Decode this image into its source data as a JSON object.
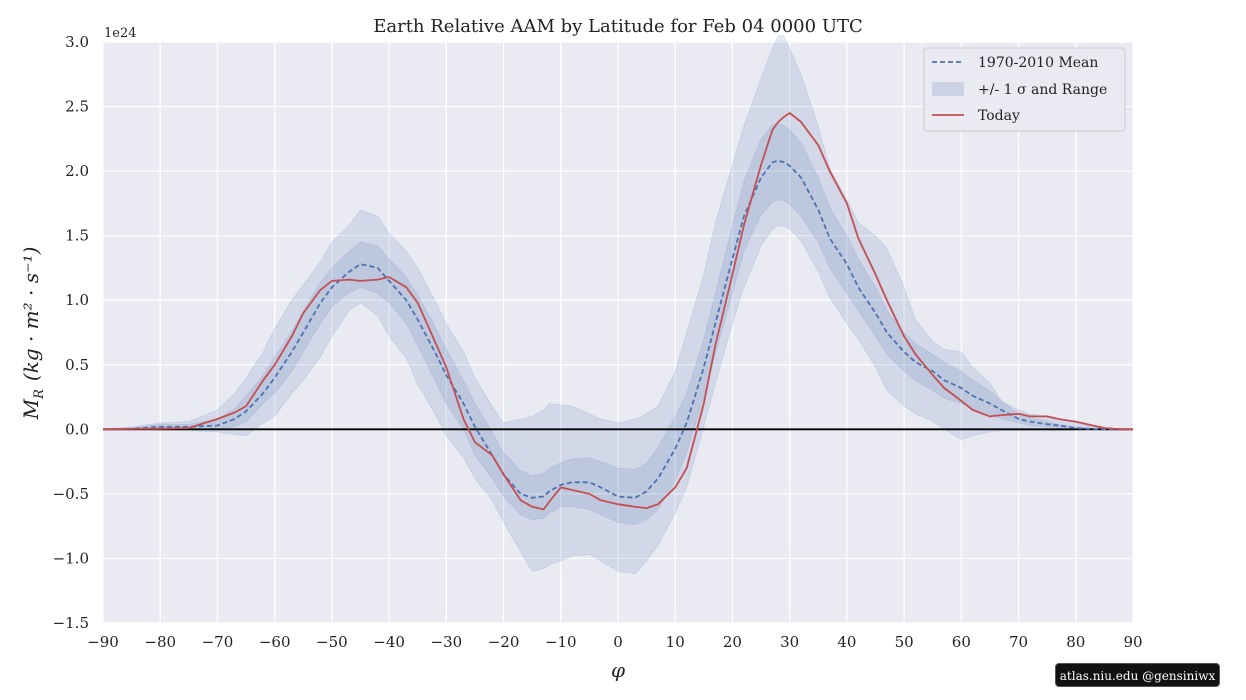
{
  "chart_data": {
    "type": "line",
    "title": "Earth Relative AAM by Latitude for Feb 04 0000 UTC",
    "xlabel": "φ",
    "ylabel_main": "M",
    "ylabel_sub": "R",
    "ylabel_units": "(kg · m² · s⁻¹)",
    "y_offset_label": "1e24",
    "xlim": [
      -90,
      90
    ],
    "ylim": [
      -1.5,
      3.0
    ],
    "x_ticks": [
      -90,
      -80,
      -70,
      -60,
      -50,
      -40,
      -30,
      -20,
      -10,
      0,
      10,
      20,
      30,
      40,
      50,
      60,
      70,
      80,
      90
    ],
    "x_tick_labels": [
      "−90",
      "−80",
      "−70",
      "−60",
      "−50",
      "−40",
      "−30",
      "−20",
      "−10",
      "0",
      "10",
      "20",
      "30",
      "40",
      "50",
      "60",
      "70",
      "80",
      "90"
    ],
    "y_ticks": [
      -1.5,
      -1.0,
      -0.5,
      0.0,
      0.5,
      1.0,
      1.5,
      2.0,
      2.5,
      3.0
    ],
    "y_tick_labels": [
      "−1.5",
      "−1.0",
      "−0.5",
      "0.0",
      "0.5",
      "1.0",
      "1.5",
      "2.0",
      "2.5",
      "3.0"
    ],
    "grid": true,
    "legend_position": "top-right",
    "legend": [
      "1970-2010 Mean",
      "+/- 1 σ and Range",
      "Today"
    ],
    "colors": {
      "background": "#eaeaf2",
      "grid": "#ffffff",
      "mean": "#4c72b0",
      "band": "#4c72b0",
      "today": "#c44e52",
      "zero_line": "#000000"
    },
    "x": [
      -90,
      -85,
      -80,
      -75,
      -70,
      -67,
      -65,
      -62,
      -60,
      -57,
      -55,
      -52,
      -50,
      -47,
      -45,
      -42,
      -40,
      -37,
      -35,
      -32,
      -30,
      -27,
      -25,
      -22,
      -20,
      -17,
      -15,
      -13,
      -12,
      -10,
      -8,
      -5,
      -3,
      0,
      3,
      5,
      7,
      10,
      12,
      15,
      17,
      20,
      22,
      25,
      27,
      28,
      29,
      30,
      32,
      35,
      37,
      40,
      42,
      45,
      47,
      50,
      52,
      55,
      57,
      60,
      62,
      65,
      67,
      70,
      72,
      75,
      77,
      80,
      82,
      85,
      88,
      90
    ],
    "series": [
      {
        "name": "1970-2010 Mean",
        "style": "dashed",
        "values": [
          0,
          0.005,
          0.02,
          0.02,
          0.03,
          0.08,
          0.14,
          0.28,
          0.4,
          0.6,
          0.75,
          0.98,
          1.1,
          1.22,
          1.28,
          1.25,
          1.15,
          1.0,
          0.85,
          0.6,
          0.42,
          0.2,
          0.02,
          -0.2,
          -0.35,
          -0.5,
          -0.53,
          -0.52,
          -0.48,
          -0.43,
          -0.41,
          -0.41,
          -0.45,
          -0.52,
          -0.53,
          -0.48,
          -0.38,
          -0.15,
          0.05,
          0.48,
          0.82,
          1.32,
          1.65,
          1.95,
          2.07,
          2.08,
          2.07,
          2.04,
          1.95,
          1.7,
          1.48,
          1.28,
          1.1,
          0.9,
          0.75,
          0.6,
          0.52,
          0.45,
          0.38,
          0.32,
          0.26,
          0.2,
          0.15,
          0.08,
          0.06,
          0.04,
          0.03,
          0.01,
          0.005,
          0,
          0,
          0
        ]
      },
      {
        "name": "Today",
        "style": "solid",
        "values": [
          0,
          0.003,
          0.005,
          0.01,
          0.08,
          0.13,
          0.18,
          0.38,
          0.5,
          0.72,
          0.9,
          1.08,
          1.15,
          1.16,
          1.15,
          1.16,
          1.18,
          1.1,
          0.98,
          0.68,
          0.48,
          0.08,
          -0.1,
          -0.2,
          -0.35,
          -0.55,
          -0.6,
          -0.62,
          -0.56,
          -0.45,
          -0.47,
          -0.5,
          -0.55,
          -0.58,
          -0.6,
          -0.61,
          -0.58,
          -0.45,
          -0.3,
          0.2,
          0.65,
          1.2,
          1.58,
          2.05,
          2.32,
          2.38,
          2.42,
          2.45,
          2.38,
          2.2,
          2.0,
          1.75,
          1.48,
          1.2,
          1.0,
          0.72,
          0.58,
          0.42,
          0.32,
          0.22,
          0.15,
          0.1,
          0.11,
          0.12,
          0.1,
          0.1,
          0.08,
          0.06,
          0.04,
          0.01,
          0,
          0
        ]
      }
    ],
    "bands": [
      {
        "name": "+/- 1 σ",
        "lower": [
          0,
          0.003,
          0.01,
          0.01,
          0.0,
          0.02,
          0.06,
          0.2,
          0.28,
          0.45,
          0.6,
          0.82,
          0.95,
          1.06,
          1.1,
          1.05,
          0.98,
          0.82,
          0.65,
          0.38,
          0.2,
          0.0,
          -0.2,
          -0.38,
          -0.52,
          -0.66,
          -0.7,
          -0.69,
          -0.65,
          -0.6,
          -0.6,
          -0.62,
          -0.66,
          -0.72,
          -0.74,
          -0.7,
          -0.62,
          -0.4,
          -0.18,
          0.25,
          0.58,
          1.05,
          1.38,
          1.66,
          1.76,
          1.78,
          1.77,
          1.74,
          1.65,
          1.45,
          1.25,
          1.05,
          0.92,
          0.72,
          0.58,
          0.45,
          0.38,
          0.3,
          0.24,
          0.2,
          0.16,
          0.12,
          0.08,
          0.05,
          0.03,
          0.02,
          0.01,
          0.005,
          0.002,
          0,
          0,
          0
        ],
        "upper": [
          0,
          0.01,
          0.04,
          0.04,
          0.08,
          0.16,
          0.26,
          0.42,
          0.56,
          0.76,
          0.92,
          1.14,
          1.25,
          1.38,
          1.45,
          1.42,
          1.32,
          1.18,
          1.04,
          0.8,
          0.62,
          0.38,
          0.2,
          -0.02,
          -0.18,
          -0.32,
          -0.36,
          -0.34,
          -0.3,
          -0.26,
          -0.23,
          -0.22,
          -0.25,
          -0.3,
          -0.31,
          -0.26,
          -0.14,
          0.1,
          0.28,
          0.7,
          1.05,
          1.58,
          1.92,
          2.25,
          2.36,
          2.37,
          2.35,
          2.32,
          2.22,
          1.95,
          1.72,
          1.5,
          1.32,
          1.1,
          0.92,
          0.75,
          0.66,
          0.58,
          0.52,
          0.45,
          0.38,
          0.3,
          0.22,
          0.12,
          0.09,
          0.06,
          0.04,
          0.02,
          0.01,
          0,
          0,
          0
        ]
      },
      {
        "name": "Range",
        "lower": [
          0,
          0,
          -0.005,
          -0.01,
          -0.02,
          -0.04,
          -0.05,
          0.05,
          0.1,
          0.28,
          0.38,
          0.56,
          0.72,
          0.92,
          0.98,
          0.88,
          0.72,
          0.55,
          0.35,
          0.12,
          -0.05,
          -0.22,
          -0.38,
          -0.55,
          -0.72,
          -0.95,
          -1.1,
          -1.08,
          -1.05,
          -1.02,
          -0.98,
          -0.97,
          -1.02,
          -1.1,
          -1.12,
          -1.02,
          -0.9,
          -0.65,
          -0.45,
          0.02,
          0.35,
          0.82,
          1.1,
          1.42,
          1.55,
          1.58,
          1.57,
          1.55,
          1.46,
          1.22,
          1.02,
          0.82,
          0.7,
          0.48,
          0.3,
          0.18,
          0.12,
          0.06,
          0.0,
          -0.08,
          -0.05,
          -0.02,
          -0.01,
          -0.01,
          -0.01,
          -0.01,
          -0.01,
          -0.005,
          0,
          0,
          0,
          0
        ],
        "upper": [
          0,
          0.02,
          0.05,
          0.06,
          0.15,
          0.28,
          0.4,
          0.6,
          0.78,
          1.0,
          1.12,
          1.3,
          1.45,
          1.58,
          1.7,
          1.65,
          1.52,
          1.38,
          1.25,
          1.0,
          0.82,
          0.6,
          0.4,
          0.18,
          0.05,
          0.08,
          0.1,
          0.15,
          0.2,
          0.19,
          0.18,
          0.12,
          0.08,
          0.05,
          0.08,
          0.12,
          0.18,
          0.45,
          0.75,
          1.2,
          1.6,
          2.05,
          2.35,
          2.72,
          2.95,
          3.05,
          3.05,
          2.95,
          2.75,
          2.35,
          2.02,
          1.78,
          1.6,
          1.5,
          1.4,
          1.1,
          0.85,
          0.68,
          0.62,
          0.6,
          0.48,
          0.36,
          0.22,
          0.15,
          0.12,
          0.1,
          0.08,
          0.05,
          0.03,
          0.01,
          0,
          0
        ]
      }
    ]
  },
  "watermark": {
    "text": "atlas.niu.edu  @gensiniwx"
  }
}
